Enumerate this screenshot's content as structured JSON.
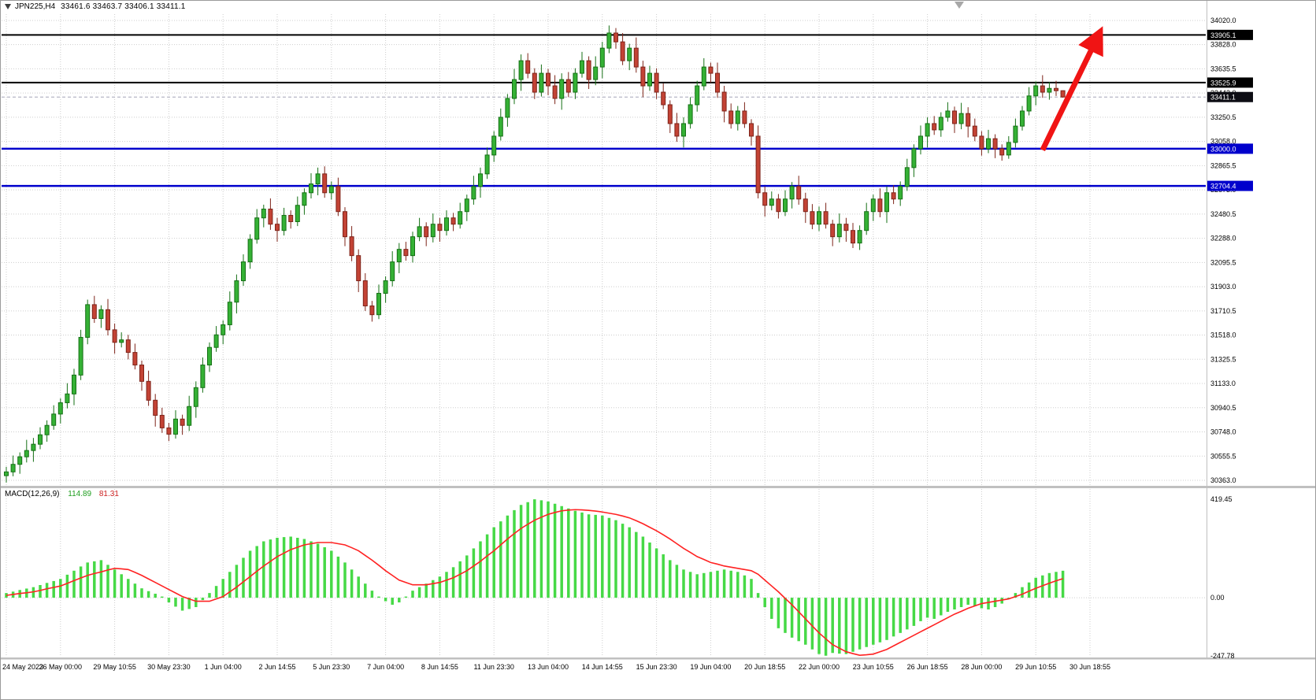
{
  "chart_data": {
    "type": "candlestick",
    "symbol": "JPN225",
    "timeframe": "H4",
    "title": "JPN225,H4",
    "title_ohlc": "33461.6 33463.7 33406.1 33411.1",
    "open": 33461.6,
    "high": 33463.7,
    "low": 33406.1,
    "close": 33411.1,
    "colors": {
      "bull": "#35b135",
      "bull_dark": "#157015",
      "bear": "#c34335",
      "bear_dark": "#7e241a",
      "hist": "#46d946",
      "signal": "#ff2222",
      "black_line": "#000000",
      "blue_line": "#0000cc",
      "bid_line": "#a6a6b8",
      "arrow": "#f01414",
      "grid": "#cdcdcd",
      "badge_dark": "#0d0d14",
      "badge_blue": "#0000cc",
      "separator": "#c0c0c0",
      "border": "#9b9b9b",
      "shift_marker": "#a8a8a8"
    },
    "price_axis": {
      "min": 30363.0,
      "max": 34020.0,
      "ticks": [
        34020.0,
        33828.0,
        33635.5,
        33443.0,
        33250.5,
        33058.0,
        32865.5,
        32673.0,
        32480.5,
        32288.0,
        32095.5,
        31903.0,
        31710.5,
        31518.0,
        31325.5,
        31133.0,
        30940.5,
        30748.0,
        30555.5,
        30363.0
      ],
      "badges": [
        {
          "value": 33905.1,
          "bg": "#000000"
        },
        {
          "value": 33525.9,
          "bg": "#000000"
        },
        {
          "value": 33411.1,
          "bg": "#0d0d14"
        },
        {
          "value": 33000.0,
          "bg": "#0000cc"
        },
        {
          "value": 32704.4,
          "bg": "#0000cc"
        }
      ]
    },
    "levels": {
      "black": [
        33905.1,
        33525.9
      ],
      "blue": [
        33000.0,
        32704.4
      ],
      "bid": 33411.1
    },
    "time_axis": {
      "bars_per_label": 8,
      "labels": [
        "24 May 2023",
        "26 May 00:00",
        "29 May 10:55",
        "30 May 23:30",
        "1 Jun 04:00",
        "2 Jun 14:55",
        "5 Jun 23:30",
        "7 Jun 04:00",
        "8 Jun 14:55",
        "11 Jun 23:30",
        "13 Jun 04:00",
        "14 Jun 14:55",
        "15 Jun 23:30",
        "19 Jun 04:00",
        "20 Jun 18:55",
        "22 Jun 00:00",
        "23 Jun 10:55",
        "26 Jun 18:55",
        "28 Jun 00:00",
        "29 Jun 10:55",
        "30 Jun 18:55"
      ]
    },
    "candles": [
      [
        30400,
        30470,
        30345,
        30430
      ],
      [
        30430,
        30560,
        30395,
        30490
      ],
      [
        30490,
        30585,
        30415,
        30550
      ],
      [
        30550,
        30685,
        30505,
        30600
      ],
      [
        30600,
        30700,
        30510,
        30650
      ],
      [
        30650,
        30785,
        30610,
        30725
      ],
      [
        30725,
        30840,
        30670,
        30800
      ],
      [
        30800,
        30960,
        30765,
        30890
      ],
      [
        30890,
        31015,
        30815,
        30980
      ],
      [
        30980,
        31135,
        30935,
        31050
      ],
      [
        31050,
        31250,
        30960,
        31200
      ],
      [
        31200,
        31560,
        31160,
        31500
      ],
      [
        31500,
        31800,
        31445,
        31760
      ],
      [
        31760,
        31830,
        31615,
        31650
      ],
      [
        31650,
        31755,
        31575,
        31720
      ],
      [
        31720,
        31805,
        31515,
        31560
      ],
      [
        31560,
        31610,
        31370,
        31460
      ],
      [
        31460,
        31540,
        31420,
        31480
      ],
      [
        31480,
        31520,
        31325,
        31380
      ],
      [
        31380,
        31450,
        31245,
        31280
      ],
      [
        31280,
        31315,
        31075,
        31150
      ],
      [
        31150,
        31235,
        30955,
        31000
      ],
      [
        31000,
        31050,
        30790,
        30880
      ],
      [
        30880,
        30940,
        30740,
        30780
      ],
      [
        30780,
        30820,
        30675,
        30730
      ],
      [
        30730,
        30920,
        30695,
        30850
      ],
      [
        30850,
        30885,
        30725,
        30800
      ],
      [
        30800,
        31035,
        30755,
        30950
      ],
      [
        30950,
        31150,
        30860,
        31100
      ],
      [
        31100,
        31340,
        31060,
        31280
      ],
      [
        31280,
        31460,
        31225,
        31420
      ],
      [
        31420,
        31590,
        31385,
        31520
      ],
      [
        31520,
        31635,
        31445,
        31600
      ],
      [
        31600,
        31865,
        31555,
        31780
      ],
      [
        31780,
        32000,
        31690,
        31950
      ],
      [
        31950,
        32160,
        31910,
        32100
      ],
      [
        32100,
        32320,
        32045,
        32280
      ],
      [
        32280,
        32520,
        32245,
        32450
      ],
      [
        32450,
        32555,
        32375,
        32520
      ],
      [
        32520,
        32605,
        32355,
        32400
      ],
      [
        32400,
        32450,
        32260,
        32350
      ],
      [
        32350,
        32530,
        32310,
        32470
      ],
      [
        32470,
        32510,
        32365,
        32420
      ],
      [
        32420,
        32620,
        32385,
        32550
      ],
      [
        32550,
        32685,
        32475,
        32650
      ],
      [
        32650,
        32805,
        32605,
        32720
      ],
      [
        32720,
        32850,
        32630,
        32800
      ],
      [
        32800,
        32860,
        32610,
        32650
      ],
      [
        32650,
        32740,
        32595,
        32700
      ],
      [
        32700,
        32770,
        32465,
        32500
      ],
      [
        32500,
        32535,
        32225,
        32300
      ],
      [
        32300,
        32385,
        32105,
        32150
      ],
      [
        32150,
        32200,
        31860,
        31950
      ],
      [
        31950,
        32010,
        31710,
        31750
      ],
      [
        31750,
        31790,
        31625,
        31680
      ],
      [
        31680,
        31920,
        31645,
        31850
      ],
      [
        31850,
        31985,
        31775,
        31950
      ],
      [
        31950,
        32185,
        31905,
        32100
      ],
      [
        32100,
        32250,
        32010,
        32200
      ],
      [
        32200,
        32260,
        32110,
        32150
      ],
      [
        32150,
        32340,
        32095,
        32300
      ],
      [
        32300,
        32450,
        32265,
        32380
      ],
      [
        32380,
        32415,
        32225,
        32300
      ],
      [
        32300,
        32485,
        32255,
        32400
      ],
      [
        32400,
        32450,
        32260,
        32350
      ],
      [
        32350,
        32510,
        32310,
        32450
      ],
      [
        32450,
        32490,
        32345,
        32400
      ],
      [
        32400,
        32570,
        32365,
        32500
      ],
      [
        32500,
        32635,
        32425,
        32600
      ],
      [
        32600,
        32785,
        32555,
        32700
      ],
      [
        32700,
        32850,
        32610,
        32800
      ],
      [
        32800,
        33010,
        32760,
        32950
      ],
      [
        32950,
        33140,
        32895,
        33100
      ],
      [
        33100,
        33320,
        33065,
        33250
      ],
      [
        33250,
        33435,
        33175,
        33400
      ],
      [
        33400,
        33635,
        33355,
        33550
      ],
      [
        33550,
        33750,
        33460,
        33700
      ],
      [
        33700,
        33760,
        33560,
        33600
      ],
      [
        33600,
        33640,
        33395,
        33450
      ],
      [
        33450,
        33670,
        33415,
        33600
      ],
      [
        33600,
        33635,
        33425,
        33500
      ],
      [
        33500,
        33585,
        33355,
        33400
      ],
      [
        33400,
        33600,
        33310,
        33550
      ],
      [
        33550,
        33610,
        33410,
        33450
      ],
      [
        33450,
        33640,
        33395,
        33600
      ],
      [
        33600,
        33770,
        33565,
        33700
      ],
      [
        33700,
        33735,
        33475,
        33550
      ],
      [
        33550,
        33735,
        33505,
        33650
      ],
      [
        33650,
        33850,
        33560,
        33800
      ],
      [
        33800,
        33980,
        33760,
        33920
      ],
      [
        33920,
        33960,
        33795,
        33850
      ],
      [
        33850,
        33920,
        33665,
        33700
      ],
      [
        33700,
        33835,
        33625,
        33800
      ],
      [
        33800,
        33885,
        33605,
        33650
      ],
      [
        33650,
        33700,
        33410,
        33500
      ],
      [
        33500,
        33660,
        33460,
        33600
      ],
      [
        33600,
        33640,
        33395,
        33450
      ],
      [
        33450,
        33520,
        33315,
        33350
      ],
      [
        33350,
        33385,
        33125,
        33200
      ],
      [
        33200,
        33285,
        33055,
        33100
      ],
      [
        33100,
        33250,
        33010,
        33200
      ],
      [
        33200,
        33410,
        33160,
        33350
      ],
      [
        33350,
        33540,
        33295,
        33500
      ],
      [
        33500,
        33720,
        33465,
        33650
      ],
      [
        33650,
        33685,
        33525,
        33600
      ],
      [
        33600,
        33685,
        33405,
        33450
      ],
      [
        33450,
        33500,
        33210,
        33300
      ],
      [
        33300,
        33360,
        33160,
        33200
      ],
      [
        33200,
        33340,
        33145,
        33300
      ],
      [
        33300,
        33370,
        33165,
        33200
      ],
      [
        33200,
        33235,
        33025,
        33100
      ],
      [
        33100,
        33185,
        32605,
        32650
      ],
      [
        32650,
        32700,
        32460,
        32550
      ],
      [
        32550,
        32660,
        32510,
        32600
      ],
      [
        32600,
        32640,
        32445,
        32500
      ],
      [
        32500,
        32670,
        32465,
        32600
      ],
      [
        32600,
        32735,
        32525,
        32700
      ],
      [
        32700,
        32785,
        32555,
        32600
      ],
      [
        32600,
        32650,
        32410,
        32500
      ],
      [
        32500,
        32560,
        32360,
        32400
      ],
      [
        32400,
        32540,
        32345,
        32500
      ],
      [
        32500,
        32570,
        32365,
        32400
      ],
      [
        32400,
        32435,
        32225,
        32300
      ],
      [
        32300,
        32485,
        32255,
        32400
      ],
      [
        32400,
        32450,
        32260,
        32350
      ],
      [
        32350,
        32410,
        32210,
        32250
      ],
      [
        32250,
        32390,
        32195,
        32350
      ],
      [
        32350,
        32570,
        32315,
        32500
      ],
      [
        32500,
        32635,
        32425,
        32600
      ],
      [
        32600,
        32685,
        32455,
        32500
      ],
      [
        32500,
        32700,
        32410,
        32650
      ],
      [
        32650,
        32710,
        32560,
        32600
      ],
      [
        32600,
        32740,
        32545,
        32700
      ],
      [
        32700,
        32920,
        32665,
        32850
      ],
      [
        32850,
        33035,
        32775,
        33000
      ],
      [
        33000,
        33185,
        32955,
        33100
      ],
      [
        33100,
        33250,
        33010,
        33200
      ],
      [
        33200,
        33260,
        33110,
        33150
      ],
      [
        33150,
        33290,
        33095,
        33250
      ],
      [
        33250,
        33370,
        33215,
        33300
      ],
      [
        33300,
        33335,
        33125,
        33200
      ],
      [
        33200,
        33365,
        33155,
        33280
      ],
      [
        33280,
        33330,
        33090,
        33180
      ],
      [
        33180,
        33240,
        33060,
        33100
      ],
      [
        33100,
        33140,
        32945,
        33000
      ],
      [
        33000,
        33150,
        32965,
        33080
      ],
      [
        33080,
        33115,
        32925,
        33000
      ],
      [
        33000,
        33035,
        32905,
        32950
      ],
      [
        32950,
        33100,
        32920,
        33050
      ],
      [
        33050,
        33240,
        33010,
        33180
      ],
      [
        33180,
        33340,
        33145,
        33300
      ],
      [
        33300,
        33490,
        33265,
        33420
      ],
      [
        33420,
        33535,
        33345,
        33500
      ],
      [
        33500,
        33585,
        33405,
        33450
      ],
      [
        33450,
        33530,
        33390,
        33480
      ],
      [
        33480,
        33540,
        33420,
        33461.6
      ],
      [
        33461.6,
        33463.7,
        33406.1,
        33411.1
      ]
    ],
    "annotations": {
      "arrow": {
        "from_bar": 153,
        "from_price": 32990,
        "to_bar": 161.5,
        "to_price": 33930
      }
    },
    "macd": {
      "label": "MACD(12,26,9)",
      "macd_value": "114.89",
      "signal_value": "81.31",
      "axis": {
        "max": 419.45,
        "zero": 0.0,
        "min": -247.78,
        "labels": [
          "419.45",
          "0.00",
          "-247.78"
        ]
      },
      "histogram": [
        20,
        26,
        33,
        39,
        45,
        54,
        63,
        71,
        80,
        98,
        115,
        133,
        150,
        155,
        160,
        140,
        120,
        100,
        80,
        60,
        40,
        28,
        17,
        5,
        -20,
        -38,
        -55,
        -48,
        -40,
        -10,
        20,
        50,
        80,
        110,
        140,
        170,
        200,
        220,
        240,
        248,
        255,
        258,
        260,
        255,
        250,
        240,
        230,
        215,
        200,
        175,
        150,
        120,
        90,
        60,
        30,
        5,
        -15,
        -30,
        -20,
        5,
        30,
        45,
        60,
        75,
        90,
        110,
        130,
        155,
        180,
        210,
        240,
        270,
        300,
        325,
        350,
        373,
        395,
        407,
        419,
        415,
        410,
        400,
        390,
        380,
        370,
        363,
        355,
        353,
        350,
        340,
        330,
        315,
        300,
        280,
        260,
        235,
        210,
        185,
        160,
        140,
        120,
        110,
        100,
        105,
        110,
        115,
        120,
        115,
        110,
        95,
        80,
        20,
        -40,
        -90,
        -130,
        -150,
        -170,
        -185,
        -200,
        -220,
        -240,
        -247,
        -235,
        -238,
        -240,
        -230,
        -220,
        -210,
        -200,
        -190,
        -180,
        -165,
        -150,
        -135,
        -120,
        -100,
        -85,
        -90,
        -75,
        -60,
        -50,
        -40,
        -30,
        -35,
        -45,
        -50,
        -40,
        -25,
        -5,
        20,
        45,
        65,
        85,
        95,
        105,
        110,
        114.89
      ],
      "signal": [
        10,
        14,
        18,
        21,
        25,
        31,
        38,
        44,
        50,
        61,
        73,
        84,
        95,
        103,
        110,
        118,
        125,
        123,
        120,
        108,
        95,
        80,
        65,
        50,
        35,
        20,
        5,
        -5,
        -15,
        -15,
        -15,
        -5,
        5,
        25,
        45,
        68,
        90,
        113,
        135,
        155,
        175,
        190,
        205,
        215,
        225,
        230,
        235,
        235,
        235,
        230,
        225,
        213,
        200,
        180,
        160,
        138,
        115,
        95,
        75,
        65,
        55,
        55,
        55,
        60,
        65,
        75,
        85,
        100,
        115,
        135,
        155,
        178,
        200,
        225,
        250,
        273,
        295,
        313,
        330,
        343,
        355,
        363,
        370,
        373,
        375,
        374,
        372,
        369,
        365,
        360,
        355,
        348,
        340,
        328,
        315,
        300,
        285,
        268,
        250,
        230,
        210,
        193,
        175,
        163,
        150,
        143,
        135,
        130,
        125,
        120,
        115,
        100,
        75,
        50,
        25,
        -3,
        -30,
        -60,
        -90,
        -120,
        -150,
        -175,
        -200,
        -215,
        -230,
        -238,
        -245,
        -243,
        -240,
        -230,
        -220,
        -205,
        -190,
        -175,
        -160,
        -145,
        -130,
        -115,
        -100,
        -85,
        -70,
        -58,
        -45,
        -35,
        -25,
        -20,
        -15,
        -10,
        -5,
        5,
        15,
        28,
        40,
        51,
        62,
        72,
        81.31
      ]
    }
  }
}
